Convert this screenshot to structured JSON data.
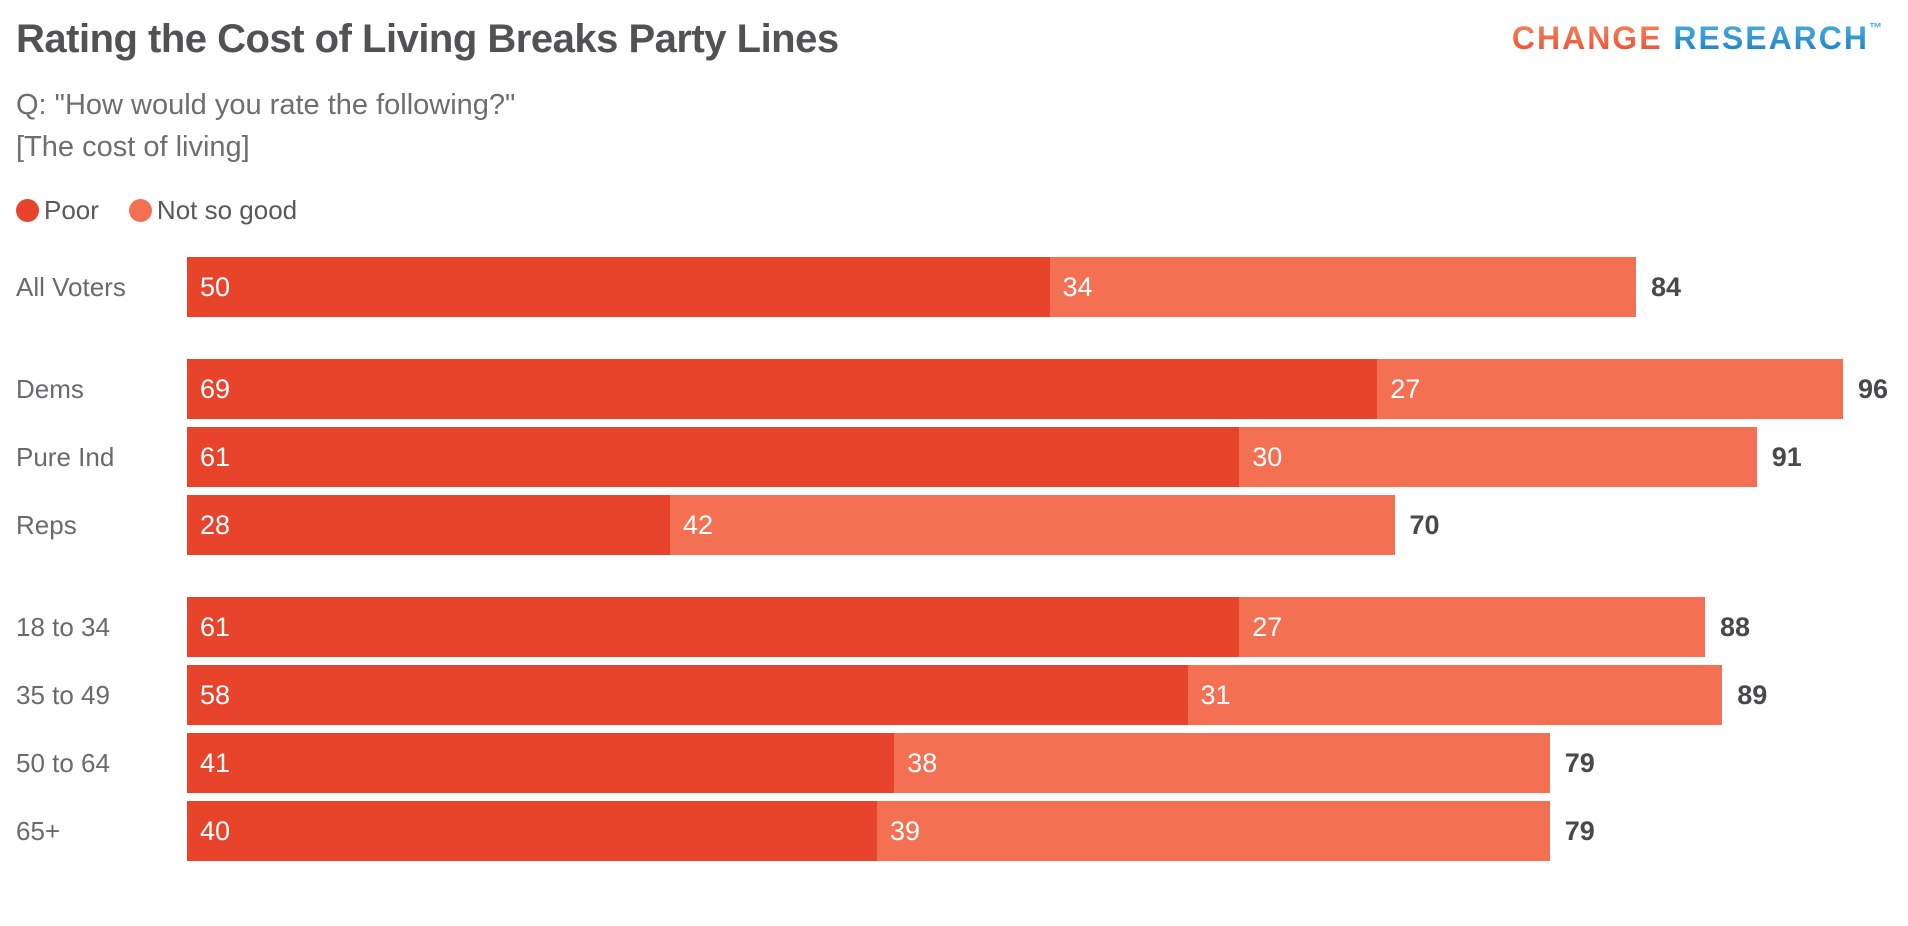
{
  "header": {
    "title": "Rating the Cost of Living Breaks Party Lines",
    "subtitle_line1": "Q: \"How would you rate the following?\"",
    "subtitle_line2": "[The cost of living]",
    "logo": {
      "part1": "CHANGE",
      "part2": "RESEARCH",
      "tm": "™",
      "part1_color": "#ef6247",
      "part2_color": "#2d9bd5"
    }
  },
  "legend": [
    {
      "label": "Poor",
      "color": "#e8432b"
    },
    {
      "label": "Not so good",
      "color": "#f37052"
    }
  ],
  "chart_data": {
    "type": "bar",
    "orientation": "horizontal",
    "stacked": true,
    "title": "Rating the Cost of Living Breaks Party Lines",
    "subtitle": "Q: \"How would you rate the following?\" [The cost of living]",
    "legend_position": "top",
    "x_max": 96,
    "grid": false,
    "categories": [
      "All Voters",
      "Dems",
      "Pure Ind",
      "Reps",
      "18 to 34",
      "35 to 49",
      "50 to 64",
      "65+"
    ],
    "series": [
      {
        "name": "Poor",
        "color": "#e8432b",
        "values": [
          50,
          69,
          61,
          28,
          61,
          58,
          41,
          40
        ]
      },
      {
        "name": "Not so good",
        "color": "#f37052",
        "values": [
          34,
          27,
          30,
          42,
          27,
          31,
          38,
          39
        ]
      }
    ],
    "totals": [
      84,
      96,
      91,
      70,
      88,
      89,
      79,
      79
    ],
    "group_start_indices": [
      1,
      4
    ],
    "value_labels": "inside-start-white",
    "total_labels": "outside-end-bold"
  }
}
